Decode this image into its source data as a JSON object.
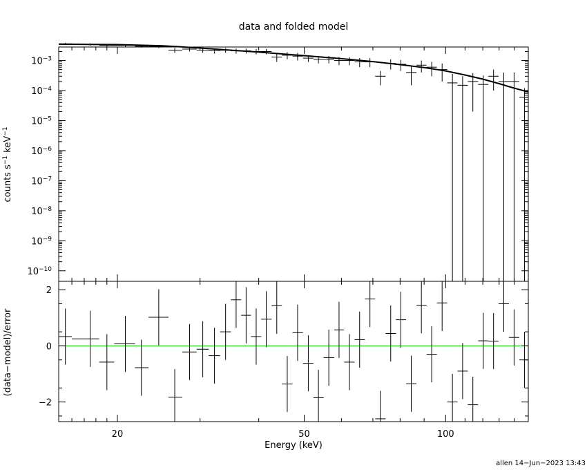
{
  "chart_data": [
    {
      "type": "scatter",
      "title": "data and folded model",
      "xlabel": "",
      "ylabel_main": "counts s",
      "ylabel_sup1": "−1",
      "ylabel_mid": " keV",
      "ylabel_sup2": "−1",
      "xscale": "log",
      "yscale": "log",
      "xlim": [
        15,
        150
      ],
      "ylim_exp": [
        -10.35,
        -2.55
      ],
      "yticks": [
        {
          "exp": -3,
          "label": "−3"
        },
        {
          "exp": -4,
          "label": "−4"
        },
        {
          "exp": -5,
          "label": "−5"
        },
        {
          "exp": -6,
          "label": "−6"
        },
        {
          "exp": -7,
          "label": "−7"
        },
        {
          "exp": -8,
          "label": "−8"
        },
        {
          "exp": -9,
          "label": "−9"
        },
        {
          "exp": -10,
          "label": "−10"
        }
      ],
      "tick_base": "10",
      "series": [
        {
          "kind": "data",
          "x": [
            15.5,
            17.5,
            19.0,
            20.8,
            22.5,
            24.5,
            26.5,
            28.5,
            30.4,
            32.2,
            34.0,
            35.8,
            37.6,
            39.5,
            41.5,
            43.7,
            46.0,
            48.4,
            51.0,
            53.6,
            56.4,
            59.3,
            62.4,
            65.6,
            69.0,
            72.6,
            76.4,
            80.3,
            84.5,
            88.8,
            93.4,
            98.3,
            103.4,
            108.7,
            114.3,
            120.3,
            126.5,
            133.0,
            139.9,
            147.2
          ],
          "x_lo": [
            15.0,
            16.0,
            18.3,
            19.7,
            21.8,
            23.3,
            25.7,
            27.5,
            29.5,
            31.3,
            33.1,
            34.9,
            36.7,
            38.5,
            40.5,
            42.6,
            44.8,
            47.2,
            49.7,
            52.3,
            55.0,
            57.9,
            60.8,
            64.0,
            67.3,
            70.8,
            74.5,
            78.4,
            82.4,
            86.7,
            91.1,
            95.8,
            100.8,
            106.0,
            111.5,
            117.3,
            123.3,
            129.7,
            136.4,
            143.5
          ],
          "x_hi": [
            16.0,
            18.3,
            19.7,
            21.8,
            23.3,
            25.7,
            27.5,
            29.5,
            31.3,
            33.1,
            34.9,
            36.7,
            38.5,
            40.5,
            42.6,
            44.8,
            47.2,
            49.7,
            52.3,
            55.0,
            57.9,
            60.8,
            64.0,
            67.3,
            70.8,
            74.5,
            78.4,
            82.4,
            86.7,
            91.1,
            95.8,
            100.8,
            106.0,
            111.5,
            117.3,
            123.3,
            129.7,
            136.4,
            143.5,
            150.0
          ],
          "y": [
            0.0036,
            0.0034,
            0.0032,
            0.0032,
            0.003,
            0.0029,
            0.0022,
            0.0024,
            0.0022,
            0.0021,
            0.0022,
            0.0021,
            0.0021,
            0.002,
            0.002,
            0.0013,
            0.0015,
            0.0014,
            0.0012,
            0.0011,
            0.0011,
            0.001,
            0.001,
            0.0009,
            0.0009,
            0.0003,
            0.0008,
            0.00075,
            0.0004,
            0.0007,
            0.0006,
            0.0005,
            0.00018,
            0.00015,
            0.0002,
            0.00016,
            0.0003,
            0.0002,
            0.0002,
            6e-05
          ],
          "y_err": [
            0.0003,
            0.0003,
            0.0003,
            0.0003,
            0.0003,
            0.0003,
            0.0004,
            0.0004,
            0.0004,
            0.0004,
            0.0004,
            0.0004,
            0.0004,
            0.0004,
            0.0004,
            0.0004,
            0.0004,
            0.0004,
            0.0003,
            0.0003,
            0.0003,
            0.0003,
            0.0003,
            0.0003,
            0.0003,
            0.00015,
            0.0003,
            0.0003,
            0.00025,
            0.0003,
            0.0003,
            0.0003,
            0.00018,
            0.00015,
            0.00018,
            0.00016,
            0.0002,
            0.0002,
            0.0002,
            6e-05
          ]
        },
        {
          "kind": "model",
          "x": [
            15.0,
            20.0,
            25.0,
            30.0,
            40.0,
            50.0,
            60.0,
            70.0,
            80.0,
            90.0,
            100.0,
            110.0,
            120.0,
            130.0,
            140.0,
            150.0
          ],
          "y": [
            0.0035,
            0.0034,
            0.0031,
            0.0026,
            0.0019,
            0.00145,
            0.00115,
            0.00092,
            0.00073,
            0.00058,
            0.00045,
            0.00033,
            0.00024,
            0.00017,
            0.00012,
            9e-05
          ]
        }
      ]
    },
    {
      "type": "scatter",
      "xlabel": "Energy (keV)",
      "ylabel": "(data−model)/error",
      "xscale": "log",
      "xlim": [
        15,
        150
      ],
      "ylim": [
        -2.7,
        2.3
      ],
      "yticks": [
        {
          "value": 2,
          "label": "2"
        },
        {
          "value": 0,
          "label": "0"
        },
        {
          "value": -2,
          "label": "−2"
        }
      ],
      "xticks": [
        {
          "value": 20,
          "label": "20"
        },
        {
          "value": 50,
          "label": "50"
        },
        {
          "value": 100,
          "label": "100"
        }
      ],
      "zero_line_color": "#00cc00",
      "series": [
        {
          "kind": "residuals",
          "y": [
            0.33,
            0.25,
            -0.58,
            0.07,
            -0.78,
            1.02,
            -1.83,
            -0.22,
            -0.12,
            -0.35,
            0.5,
            1.64,
            1.09,
            0.33,
            0.95,
            1.43,
            -1.36,
            0.47,
            -0.62,
            -1.85,
            -0.42,
            0.57,
            -0.58,
            0.22,
            1.67,
            -2.6,
            0.44,
            0.93,
            -1.35,
            1.45,
            -0.3,
            1.53,
            -2.0,
            -0.9,
            -2.1,
            0.18,
            0.17,
            1.5,
            0.3,
            -0.5
          ],
          "y_err": [
            1.0,
            1.0,
            1.0,
            1.0,
            1.0,
            1.0,
            1.0,
            1.0,
            1.0,
            1.0,
            1.0,
            1.0,
            1.0,
            1.0,
            1.0,
            1.0,
            1.0,
            1.0,
            1.0,
            1.0,
            1.0,
            1.0,
            1.0,
            1.0,
            1.0,
            1.0,
            1.0,
            1.0,
            1.0,
            1.0,
            1.0,
            1.0,
            1.0,
            1.0,
            1.0,
            1.0,
            1.0,
            1.0,
            1.0,
            1.0
          ]
        }
      ]
    }
  ],
  "footer": {
    "stamp": "allen 14−Jun−2023 13:43"
  },
  "colors": {
    "axes": "#000000",
    "data": "#000000",
    "zero_line": "#00cc00"
  }
}
